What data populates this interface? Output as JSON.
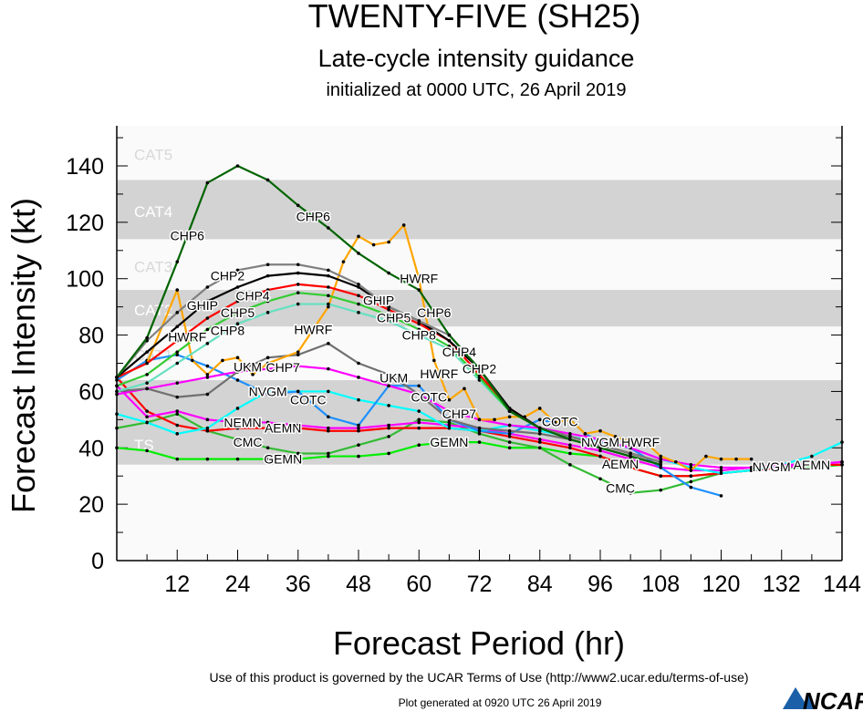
{
  "title": "TWENTY-FIVE (SH25)",
  "subtitle": "Late-cycle intensity guidance",
  "init_line": "initialized at 0000 UTC, 26 April 2019",
  "footer_terms": "Use of this product is governed by the UCAR Terms of Use (http://www2.ucar.edu/terms-of-use)",
  "footer_generated": "Plot generated at 0920 UTC   26 April 2019",
  "logo_text": "NCAR",
  "chart_data": {
    "type": "line",
    "title": "TWENTY-FIVE (SH25)",
    "xlabel": "Forecast Period (hr)",
    "ylabel": "Forecast Intensity (kt)",
    "xlim": [
      0,
      144
    ],
    "ylim": [
      0,
      155
    ],
    "xticks": [
      12,
      24,
      36,
      48,
      60,
      72,
      84,
      96,
      108,
      120,
      132,
      144
    ],
    "yticks": [
      0,
      20,
      40,
      60,
      80,
      100,
      120,
      140
    ],
    "bands": [
      {
        "label": "CAT5",
        "from": 135,
        "to": 155,
        "shade": "#fafafa"
      },
      {
        "label": "CAT4",
        "from": 114,
        "to": 135,
        "shade": "#d3d3d3"
      },
      {
        "label": "CAT3",
        "from": 96,
        "to": 114,
        "shade": "#fafafa"
      },
      {
        "label": "CAT2",
        "from": 83,
        "to": 96,
        "shade": "#d3d3d3"
      },
      {
        "label": "CAT1",
        "from": 64,
        "to": 83,
        "shade": "#fafafa"
      },
      {
        "label": "TS",
        "from": 34,
        "to": 64,
        "shade": "#d3d3d3"
      },
      {
        "label": "",
        "from": 0,
        "to": 34,
        "shade": "#fafafa"
      }
    ],
    "series": [
      {
        "name": "GEMN",
        "color": "#00ee00",
        "label_hours": [
          33,
          66
        ],
        "x": [
          0,
          6,
          12,
          18,
          24,
          30,
          36,
          42,
          48,
          54,
          60,
          66,
          72,
          78,
          84,
          90,
          96,
          102,
          108,
          114,
          120,
          126,
          132,
          138,
          144
        ],
        "y": [
          40,
          39,
          36,
          36,
          36,
          36,
          36,
          37,
          37,
          38,
          41,
          42,
          42,
          40,
          40,
          38,
          37,
          33,
          30,
          30,
          31,
          32,
          33,
          33,
          34
        ]
      },
      {
        "name": "CMC",
        "color": "#33bb33",
        "label_hours": [
          30,
          100
        ],
        "x": [
          0,
          6,
          12,
          18,
          24,
          30,
          36,
          42,
          48,
          54,
          60,
          66,
          72,
          78,
          84,
          90,
          96,
          102,
          108,
          114,
          120
        ],
        "y": [
          47,
          49,
          52,
          46,
          43,
          40,
          38,
          38,
          41,
          44,
          50,
          49,
          45,
          42,
          40,
          34,
          29,
          24,
          25,
          28,
          31
        ]
      },
      {
        "name": "AEMN",
        "color": "#ff0000",
        "label_hours": [
          27,
          100,
          138
        ],
        "x": [
          0,
          6,
          12,
          18,
          24,
          30,
          36,
          42,
          48,
          54,
          60,
          66,
          72,
          78,
          84,
          90,
          96,
          102,
          108,
          114,
          120,
          126,
          132,
          138,
          144
        ],
        "y": [
          65,
          53,
          48,
          46,
          47,
          47,
          47,
          46,
          46,
          47,
          47,
          47,
          46,
          44,
          42,
          40,
          37,
          33,
          30,
          30,
          31,
          32,
          33,
          34,
          34
        ]
      },
      {
        "name": "NEMN",
        "color": "#ff00ff",
        "label_hours": [
          27
        ],
        "x": [
          0,
          6,
          12,
          18,
          24,
          30,
          36,
          42,
          48,
          54,
          60,
          66,
          72,
          78,
          84,
          90,
          96,
          102,
          108,
          114,
          120,
          126,
          132,
          138,
          144
        ],
        "y": [
          62,
          51,
          53,
          50,
          49,
          49,
          48,
          47,
          47,
          48,
          49,
          48,
          47,
          45,
          43,
          41,
          39,
          36,
          33,
          32,
          32,
          33,
          33,
          34,
          35
        ]
      },
      {
        "name": "NVGM",
        "color": "#00ffff",
        "label_hours": [
          30,
          96,
          138
        ],
        "x": [
          0,
          6,
          12,
          18,
          24,
          30,
          36,
          42,
          48,
          54,
          60,
          66,
          72,
          78,
          84,
          90,
          96,
          102,
          108,
          114,
          120,
          126,
          132,
          138,
          144
        ],
        "y": [
          52,
          49,
          45,
          47,
          54,
          60,
          60,
          60,
          57,
          55,
          53,
          47,
          46,
          48,
          46,
          44,
          42,
          40,
          36,
          33,
          31,
          32,
          34,
          37,
          42
        ]
      },
      {
        "name": "COTC",
        "color": "#1e90ff",
        "label_hours": [
          30,
          62,
          88
        ],
        "x": [
          0,
          6,
          12,
          18,
          24,
          30,
          36,
          42,
          48,
          54,
          60,
          66,
          72,
          78,
          84,
          87,
          90,
          93,
          96,
          102,
          108,
          114,
          120
        ],
        "y": [
          64,
          71,
          73,
          69,
          64,
          59,
          60,
          51,
          48,
          62,
          62,
          50,
          46,
          45,
          50,
          49,
          50,
          45,
          42,
          40,
          33,
          26,
          23
        ]
      },
      {
        "name": "CHP7",
        "color": "#ff00ff",
        "label_hours": [
          33,
          66
        ],
        "x": [
          0,
          6,
          12,
          18,
          24,
          30,
          36,
          42,
          48,
          54,
          60,
          66,
          72,
          78,
          84,
          90,
          96,
          102,
          108,
          114,
          120,
          126,
          132,
          138,
          144
        ],
        "y": [
          59,
          61,
          63,
          65,
          67,
          68,
          69,
          68,
          65,
          62,
          59,
          53,
          50,
          48,
          47,
          45,
          43,
          40,
          36,
          34,
          33,
          33,
          34,
          34,
          35
        ]
      },
      {
        "name": "UKM",
        "color": "#707070",
        "label_hours": [
          30,
          64
        ],
        "x": [
          0,
          6,
          12,
          18,
          24,
          30,
          36,
          42,
          48,
          54,
          60,
          66,
          72,
          78,
          84,
          90,
          96,
          102,
          108
        ],
        "y": [
          60,
          61,
          58,
          59,
          67,
          72,
          73,
          77,
          70,
          66,
          59,
          50,
          47,
          46,
          45,
          43,
          40,
          37,
          34
        ]
      },
      {
        "name": "HWRF",
        "color": "#ffa500",
        "label_hours": [
          13,
          39,
          60,
          68,
          94
        ],
        "x": [
          0,
          6,
          12,
          15,
          18,
          21,
          24,
          27,
          30,
          36,
          42,
          45,
          48,
          51,
          54,
          57,
          60,
          63,
          66,
          69,
          72,
          75,
          78,
          81,
          84,
          87,
          90,
          93,
          96,
          99,
          102,
          105,
          108,
          111,
          114,
          117,
          120,
          123,
          126
        ],
        "y": [
          65,
          70,
          96,
          71,
          66,
          71,
          72,
          66,
          70,
          74,
          90,
          106,
          115,
          112,
          113,
          119,
          100,
          71,
          57,
          61,
          50,
          50,
          51,
          51,
          54,
          49,
          50,
          45,
          46,
          44,
          42,
          42,
          37,
          35,
          32,
          37,
          36,
          36,
          36
        ]
      },
      {
        "name": "CHP8",
        "color": "#66e0c0",
        "label_hours": [
          21,
          60
        ],
        "x": [
          0,
          6,
          12,
          18,
          24,
          30,
          36,
          42,
          48,
          54,
          60,
          66,
          72,
          78,
          84,
          90,
          96,
          102,
          108
        ],
        "y": [
          60,
          63,
          70,
          77,
          84,
          88,
          91,
          91,
          88,
          85,
          80,
          75,
          64,
          53,
          47,
          44,
          41,
          38,
          35
        ]
      },
      {
        "name": "CHP5",
        "color": "#33cc33",
        "label_hours": [
          21,
          60
        ],
        "x": [
          0,
          6,
          12,
          18,
          24,
          30,
          36,
          42,
          48,
          54,
          60,
          66,
          72,
          78,
          84,
          90,
          96,
          102,
          108
        ],
        "y": [
          62,
          66,
          74,
          82,
          88,
          92,
          95,
          94,
          91,
          87,
          82,
          76,
          65,
          53,
          47,
          44,
          41,
          38,
          35
        ]
      },
      {
        "name": "CHP4",
        "color": "#ff0000",
        "label_hours": [
          21,
          60
        ],
        "x": [
          0,
          6,
          12,
          18,
          24,
          30,
          36,
          42,
          48,
          54,
          60,
          66,
          72,
          78,
          84,
          90,
          96,
          102,
          108
        ],
        "y": [
          65,
          70,
          78,
          86,
          92,
          96,
          98,
          97,
          94,
          89,
          84,
          78,
          66,
          54,
          47,
          44,
          41,
          38,
          35
        ]
      },
      {
        "name": "GHIP",
        "color": "#000000",
        "label_hours": [
          19,
          60
        ],
        "x": [
          0,
          6,
          12,
          18,
          24,
          30,
          36,
          42,
          48,
          54,
          60,
          66,
          72,
          78,
          84,
          90,
          96,
          102,
          108
        ],
        "y": [
          65,
          74,
          83,
          92,
          97,
          101,
          102,
          101,
          97,
          90,
          85,
          78,
          68,
          54,
          47,
          44,
          41,
          38,
          35
        ]
      },
      {
        "name": "CHP2",
        "color": "#808080",
        "label_hours": [
          22,
          60
        ],
        "x": [
          0,
          6,
          12,
          18,
          24,
          30,
          36,
          42,
          48,
          54,
          60,
          66,
          72,
          78,
          84,
          90,
          96,
          102,
          108
        ],
        "y": [
          65,
          78,
          88,
          97,
          103,
          105,
          105,
          103,
          98,
          90,
          85,
          80,
          68,
          53,
          47,
          44,
          41,
          38,
          35
        ]
      },
      {
        "name": "CHP6",
        "color": "#006400",
        "label_hours": [
          14,
          39,
          64
        ],
        "x": [
          0,
          6,
          12,
          18,
          24,
          30,
          36,
          42,
          48,
          54,
          60,
          66,
          72,
          78,
          84,
          90,
          96,
          102,
          108
        ],
        "y": [
          65,
          79,
          106,
          134,
          140,
          135,
          126,
          118,
          109,
          102,
          96,
          80,
          68,
          53,
          47,
          43,
          40,
          37,
          34
        ]
      }
    ]
  }
}
